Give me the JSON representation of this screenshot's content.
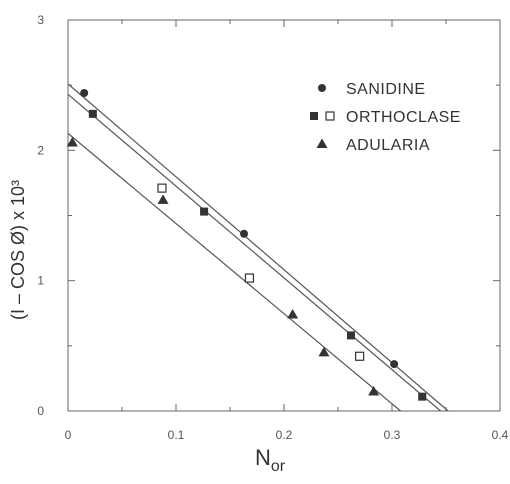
{
  "chart_data": {
    "type": "scatter",
    "title": "",
    "xlabel": {
      "main": "N",
      "sub": "or"
    },
    "ylabel": "(I – COS Ø)  x 10³",
    "xlim": [
      0,
      0.4
    ],
    "ylim": [
      0,
      3
    ],
    "x_ticks": [
      0,
      0.1,
      0.2,
      0.3,
      0.4
    ],
    "x_tick_labels": [
      "0",
      "0.1",
      "0.2",
      "0.3",
      "0.4"
    ],
    "y_ticks": [
      0,
      1,
      2,
      3
    ],
    "y_tick_labels": [
      "0",
      "1",
      "2",
      "3"
    ],
    "legend_position": "top-right",
    "grid": false,
    "series": [
      {
        "name": "SANIDINE",
        "marker": "circle-filled",
        "points": [
          {
            "x": 0.015,
            "y": 2.44
          },
          {
            "x": 0.163,
            "y": 1.36
          },
          {
            "x": 0.302,
            "y": 0.36
          }
        ]
      },
      {
        "name": "ORTHOCLASE",
        "marker": "square-filled",
        "points": [
          {
            "x": 0.023,
            "y": 2.28
          },
          {
            "x": 0.126,
            "y": 1.53
          },
          {
            "x": 0.262,
            "y": 0.58
          },
          {
            "x": 0.328,
            "y": 0.11
          }
        ]
      },
      {
        "name": "ORTHOCLASE",
        "marker": "square-open",
        "points": [
          {
            "x": 0.087,
            "y": 1.71
          },
          {
            "x": 0.168,
            "y": 1.02
          },
          {
            "x": 0.27,
            "y": 0.42
          }
        ]
      },
      {
        "name": "ADULARIA",
        "marker": "triangle-filled",
        "points": [
          {
            "x": 0.004,
            "y": 2.06
          },
          {
            "x": 0.088,
            "y": 1.62
          },
          {
            "x": 0.208,
            "y": 0.74
          },
          {
            "x": 0.237,
            "y": 0.45
          },
          {
            "x": 0.283,
            "y": 0.15
          }
        ]
      }
    ],
    "fit_lines": [
      {
        "x1": 0.0,
        "y1": 2.51,
        "x2": 0.352,
        "y2": 0.0
      },
      {
        "x1": 0.0,
        "y1": 2.43,
        "x2": 0.345,
        "y2": 0.0
      },
      {
        "x1": 0.0,
        "y1": 2.13,
        "x2": 0.308,
        "y2": 0.0
      }
    ],
    "legend": [
      {
        "label": "SANIDINE",
        "markers": [
          "circle-filled"
        ]
      },
      {
        "label": "ORTHOCLASE",
        "markers": [
          "square-filled",
          "square-open"
        ]
      },
      {
        "label": "ADULARIA",
        "markers": [
          "triangle-filled"
        ]
      }
    ]
  }
}
